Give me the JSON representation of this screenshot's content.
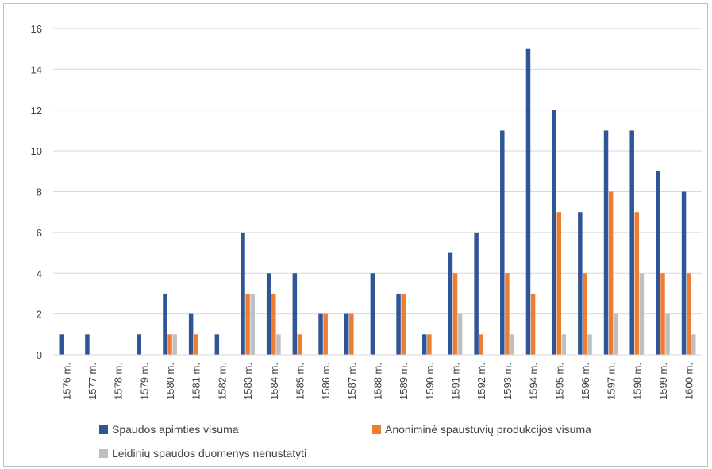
{
  "chart_data": {
    "type": "bar",
    "categories": [
      "1576 m.",
      "1577 m.",
      "1578 m.",
      "1579 m.",
      "1580 m.",
      "1581 m.",
      "1582 m.",
      "1583 m.",
      "1584 m.",
      "1585 m.",
      "1586 m.",
      "1587 m.",
      "1588 m.",
      "1589 m.",
      "1590 m.",
      "1591 m.",
      "1592 m.",
      "1593 m.",
      "1594 m.",
      "1595 m.",
      "1596 m.",
      "1597 m.",
      "1598 m.",
      "1599 m.",
      "1600 m."
    ],
    "series": [
      {
        "name": "Spaudos apimties visuma",
        "color": "#2f5597",
        "values": [
          1,
          1,
          0,
          1,
          3,
          2,
          1,
          6,
          4,
          4,
          2,
          2,
          4,
          3,
          1,
          5,
          6,
          11,
          15,
          12,
          7,
          11,
          11,
          9,
          8
        ]
      },
      {
        "name": "Anoniminė spaustuvių produkcijos visuma",
        "color": "#ed7d31",
        "values": [
          0,
          0,
          0,
          0,
          1,
          1,
          0,
          3,
          3,
          1,
          2,
          2,
          0,
          3,
          1,
          4,
          1,
          4,
          3,
          7,
          4,
          8,
          7,
          4,
          4
        ]
      },
      {
        "name": "Leidinių spaudos duomenys nenustatyti",
        "color": "#bfbfbf",
        "values": [
          0,
          0,
          0,
          0,
          1,
          0,
          0,
          3,
          1,
          0,
          0,
          0,
          0,
          0,
          0,
          2,
          0,
          1,
          0,
          1,
          1,
          2,
          4,
          2,
          1
        ]
      }
    ],
    "yticks": [
      "0",
      "2",
      "4",
      "6",
      "8",
      "10",
      "12",
      "14",
      "16"
    ],
    "ylim": [
      0,
      16
    ],
    "grid": true,
    "legend_position": "bottom"
  }
}
